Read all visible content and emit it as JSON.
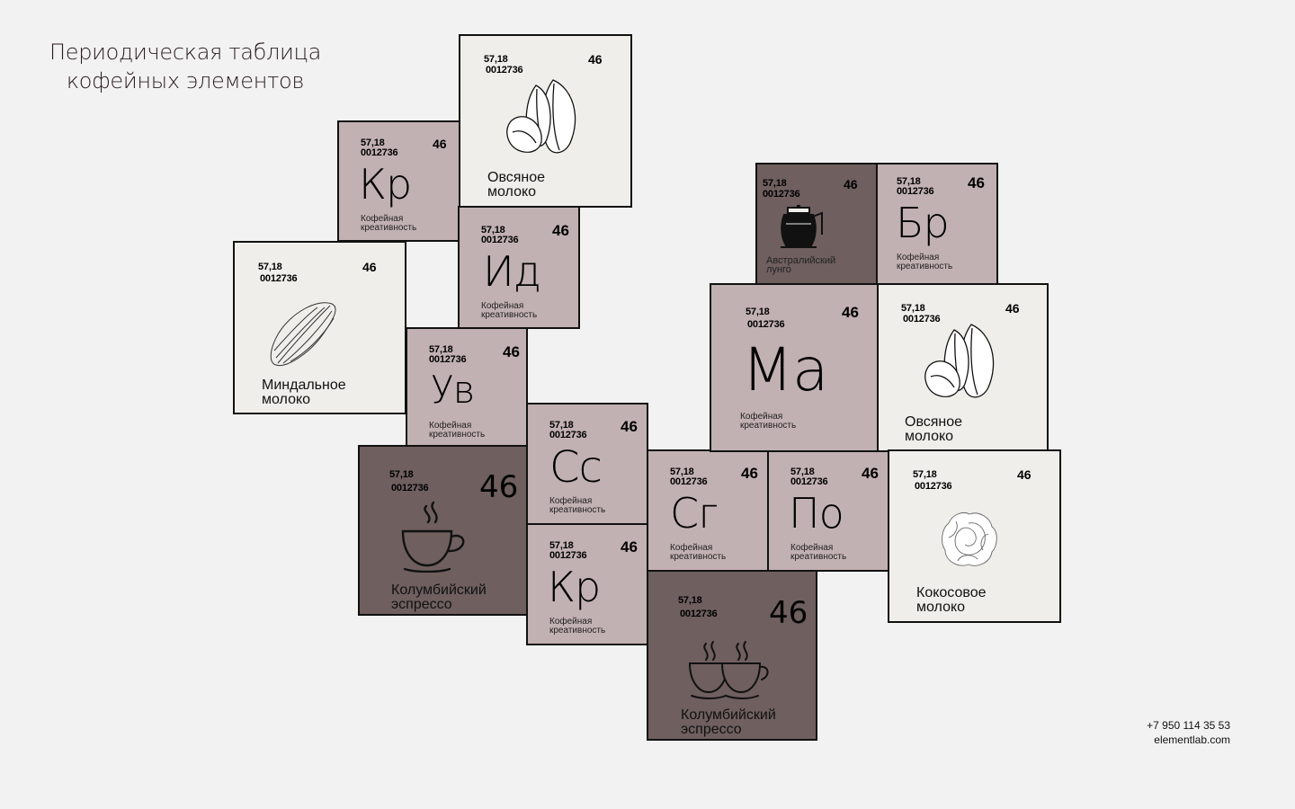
{
  "title": {
    "line1": "Периодическая таблица",
    "line2": "кофейных элементов"
  },
  "contacts": {
    "phone": "+7 950 114 35 53",
    "site": "elementlab.com"
  },
  "colors": {
    "background": "#f2f2f2",
    "mauve": "#c2b1b2",
    "light": "#f0eeea",
    "dark": "#6f5f5f",
    "border": "#111111"
  },
  "tiles": [
    {
      "id": "t1",
      "mass": "57,18",
      "code": "0012736",
      "num": "46",
      "symbol": "Кр",
      "desc1": "Кофейная",
      "desc2": "креативность"
    },
    {
      "id": "t2",
      "mass": "57,18",
      "code": "0012736",
      "num": "46",
      "icon": "beans-icon",
      "name1": "Овсяное",
      "name2": "молоко"
    },
    {
      "id": "t3",
      "mass": "57,18",
      "code": "0012736",
      "num": "46",
      "symbol": "Ид",
      "desc1": "Кофейная",
      "desc2": "креативность"
    },
    {
      "id": "t4",
      "mass": "57,18",
      "code": "0012736",
      "num": "46",
      "icon": "almond-icon",
      "name1": "Миндальное",
      "name2": "молоко"
    },
    {
      "id": "t5",
      "mass": "57,18",
      "code": "0012736",
      "num": "46",
      "symbol": "Ув",
      "desc1": "Кофейная",
      "desc2": "креативность"
    },
    {
      "id": "t6",
      "mass": "57,18",
      "code": "0012736",
      "num": "46",
      "icon": "coffee-cup-icon",
      "name1": "Колумбийский",
      "name2": "эспрессо"
    },
    {
      "id": "t7",
      "mass": "57,18",
      "code": "0012736",
      "num": "46",
      "symbol": "Сс",
      "desc1": "Кофейная",
      "desc2": "креативность"
    },
    {
      "id": "t8",
      "mass": "57,18",
      "code": "0012736",
      "num": "46",
      "symbol": "Кр",
      "desc1": "Кофейная",
      "desc2": "креативность"
    },
    {
      "id": "t9",
      "mass": "57,18",
      "code": "0012736",
      "num": "46",
      "symbol": "Сг",
      "desc1": "Кофейная",
      "desc2": "креативность"
    },
    {
      "id": "t10",
      "mass": "57,18",
      "code": "0012736",
      "num": "46",
      "symbol": "По",
      "desc1": "Кофейная",
      "desc2": "креативность"
    },
    {
      "id": "t11",
      "mass": "57,18",
      "code": "0012736",
      "num": "46",
      "icon": "two-cups-icon",
      "name1": "Колумбийский",
      "name2": "эспрессо"
    },
    {
      "id": "t12",
      "mass": "57,18",
      "code": "0012736",
      "num": "46",
      "icon": "coffee-pot-icon",
      "desc1": "Австралийский",
      "desc2": "лунго"
    },
    {
      "id": "t13",
      "mass": "57,18",
      "code": "0012736",
      "num": "46",
      "symbol": "Бр",
      "desc1": "Кофейная",
      "desc2": "креативность"
    },
    {
      "id": "t14",
      "mass": "57,18",
      "code": "0012736",
      "num": "46",
      "symbol": "Ма",
      "desc1": "Кофейная",
      "desc2": "креативность"
    },
    {
      "id": "t15",
      "mass": "57,18",
      "code": "0012736",
      "num": "46",
      "icon": "beans-icon",
      "name1": "Овсяное",
      "name2": "молоко"
    },
    {
      "id": "t16",
      "mass": "57,18",
      "code": "0012736",
      "num": "46",
      "icon": "coconut-flower-icon",
      "name1": "Кокосовое",
      "name2": "молоко"
    }
  ]
}
